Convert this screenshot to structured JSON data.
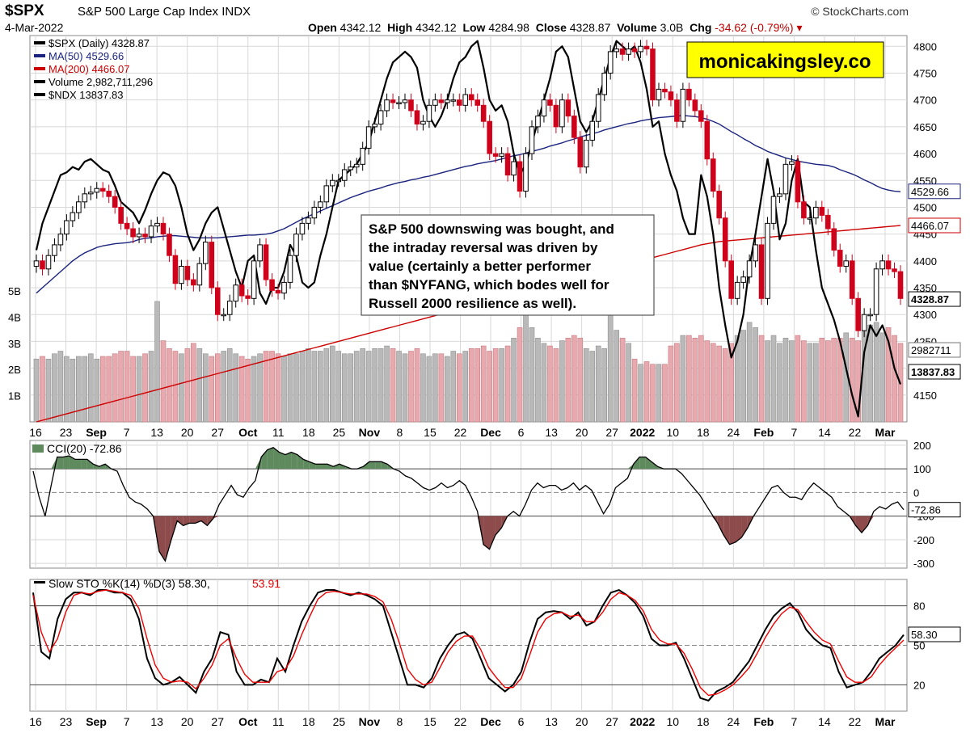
{
  "header": {
    "symbol": "$SPX",
    "description": "S&P 500 Large Cap Index",
    "exchange": "INDX",
    "date": "4-Mar-2022",
    "source": "© StockCharts.com",
    "quote": {
      "open_label": "Open",
      "open": "4342.12",
      "high_label": "High",
      "high": "4342.12",
      "low_label": "Low",
      "low": "4284.98",
      "close_label": "Close",
      "close": "4328.87",
      "volume_label": "Volume",
      "volume": "3.0B",
      "chg_label": "Chg",
      "chg": "-34.62 (-0.79%)"
    }
  },
  "watermark": "monicakingsley.co",
  "annotation": [
    "S&P 500 downswing was bought, and",
    "the intraday reversal was driven by",
    "value (certainly a better performer",
    "than $NYFANG, which bodes well for",
    "Russell 2000 resilience as well)."
  ],
  "legend_main": [
    {
      "text": "$SPX (Daily) 4328.87",
      "color": "#000000",
      "icon": "candle-icon"
    },
    {
      "text": "MA(50) 4529.66",
      "color": "#1a237e",
      "icon": "line-icon"
    },
    {
      "text": "MA(200) 4466.07",
      "color": "#cc0000",
      "icon": "line-icon"
    },
    {
      "text": "Volume 2,982,711,296",
      "color": "#000000",
      "icon": "bar-icon"
    },
    {
      "text": "$NDX 13837.83",
      "color": "#000000",
      "icon": "line-icon"
    }
  ],
  "legend_cci": "CCI(20) -72.86",
  "legend_sto": {
    "k": "Slow STO %K(14) %D(3) 58.30,",
    "d": "53.91"
  },
  "right_labels": {
    "ma50": "4529.66",
    "ma200": "4466.07",
    "close": "4328.87",
    "volume": "2982711",
    "ndx": "13837.83",
    "cci": "-72.86",
    "sto": "58.30"
  },
  "colors": {
    "up": "#000000",
    "down": "#d0021b",
    "ma50": "#1a237e",
    "ma200": "#cc0000",
    "vol_up": "#b9b9b9",
    "vol_down": "#e8a9ae",
    "cci_pos": "#5e8a5e",
    "cci_neg": "#8e4b4b",
    "sto_k": "#000000",
    "sto_d": "#ee0000",
    "grid": "#d8d8d8"
  },
  "chart_data": [
    {
      "type": "candlestick",
      "title": "$SPX (Daily) 4328.87",
      "x_tick_labels": [
        "16",
        "23",
        "Sep",
        "7",
        "13",
        "20",
        "27",
        "Oct",
        "11",
        "18",
        "25",
        "Nov",
        "8",
        "15",
        "22",
        "Dec",
        "6",
        "13",
        "20",
        "27",
        "2022",
        "10",
        "18",
        "24",
        "Feb",
        "7",
        "14",
        "22",
        "Mar"
      ],
      "y_ticks": [
        4150,
        4200,
        4250,
        4300,
        4350,
        4400,
        4450,
        4500,
        4550,
        4600,
        4650,
        4700,
        4750,
        4800
      ],
      "ylim": [
        4100,
        4820
      ],
      "volume_ticks": [
        "1B",
        "2B",
        "3B",
        "4B",
        "5B"
      ],
      "close": [
        4400,
        4385,
        4410,
        4430,
        4450,
        4475,
        4490,
        4510,
        4525,
        4528,
        4535,
        4530,
        4520,
        4500,
        4470,
        4460,
        4445,
        4450,
        4445,
        4465,
        4470,
        4450,
        4410,
        4358,
        4390,
        4365,
        4355,
        4395,
        4435,
        4350,
        4300,
        4300,
        4325,
        4355,
        4335,
        4330,
        4400,
        4430,
        4365,
        4345,
        4340,
        4360,
        4410,
        4450,
        4470,
        4480,
        4500,
        4510,
        4540,
        4550,
        4550,
        4570,
        4575,
        4580,
        4610,
        4650,
        4655,
        4680,
        4700,
        4695,
        4695,
        4700,
        4680,
        4655,
        4660,
        4690,
        4700,
        4695,
        4700,
        4700,
        4690,
        4710,
        4700,
        4690,
        4660,
        4600,
        4595,
        4600,
        4560,
        4585,
        4530,
        4600,
        4650,
        4670,
        4700,
        4690,
        4650,
        4700,
        4670,
        4630,
        4575,
        4625,
        4660,
        4710,
        4750,
        4790,
        4795,
        4785,
        4795,
        4790,
        4800,
        4795,
        4700,
        4720,
        4715,
        4700,
        4660,
        4720,
        4700,
        4680,
        4660,
        4590,
        4530,
        4480,
        4400,
        4330,
        4360,
        4370,
        4400,
        4430,
        4330,
        4470,
        4520,
        4525,
        4580,
        4585,
        4510,
        4480,
        4480,
        4500,
        4485,
        4460,
        4420,
        4390,
        4400,
        4330,
        4270,
        4300,
        4300,
        4385,
        4400,
        4385,
        4380,
        4330
      ],
      "ma50": [
        4340,
        4350,
        4360,
        4370,
        4380,
        4390,
        4400,
        4408,
        4415,
        4420,
        4425,
        4428,
        4430,
        4432,
        4433,
        4434,
        4436,
        4440,
        4442,
        4443,
        4445,
        4446,
        4447,
        4447,
        4446,
        4445,
        4444,
        4443,
        4443,
        4443,
        4443,
        4444,
        4445,
        4446,
        4447,
        4448,
        4448,
        4449,
        4450,
        4452,
        4456,
        4460,
        4466,
        4472,
        4478,
        4483,
        4488,
        4493,
        4498,
        4503,
        4508,
        4513,
        4518,
        4522,
        4526,
        4530,
        4533,
        4536,
        4540,
        4543,
        4546,
        4548,
        4551,
        4553,
        4556,
        4558,
        4561,
        4564,
        4567,
        4570,
        4573,
        4576,
        4578,
        4581,
        4583,
        4585,
        4587,
        4590,
        4593,
        4596,
        4598,
        4601,
        4604,
        4607,
        4610,
        4614,
        4617,
        4620,
        4624,
        4627,
        4631,
        4634,
        4637,
        4640,
        4644,
        4647,
        4650,
        4653,
        4656,
        4658,
        4661,
        4663,
        4665,
        4667,
        4668,
        4669,
        4670,
        4671,
        4670,
        4669,
        4667,
        4664,
        4660,
        4655,
        4648,
        4641,
        4635,
        4628,
        4622,
        4615,
        4610,
        4604,
        4600,
        4596,
        4592,
        4589,
        4586,
        4584,
        4582,
        4580,
        4579,
        4578,
        4575,
        4570,
        4566,
        4562,
        4557,
        4551,
        4546,
        4540,
        4535,
        4532,
        4530,
        4529
      ],
      "ma200": [
        4100,
        4103,
        4106,
        4109,
        4112,
        4115,
        4118,
        4121,
        4124,
        4127,
        4130,
        4133,
        4136,
        4139,
        4142,
        4145,
        4148,
        4151,
        4154,
        4157,
        4160,
        4163,
        4166,
        4169,
        4172,
        4175,
        4178,
        4181,
        4184,
        4187,
        4190,
        4193,
        4196,
        4199,
        4202,
        4205,
        4208,
        4211,
        4214,
        4217,
        4220,
        4223,
        4226,
        4229,
        4232,
        4235,
        4238,
        4241,
        4244,
        4247,
        4250,
        4253,
        4256,
        4259,
        4262,
        4265,
        4268,
        4271,
        4274,
        4277,
        4280,
        4283,
        4286,
        4289,
        4292,
        4295,
        4298,
        4301,
        4304,
        4307,
        4310,
        4313,
        4316,
        4319,
        4322,
        4325,
        4328,
        4331,
        4334,
        4337,
        4340,
        4343,
        4346,
        4349,
        4352,
        4355,
        4358,
        4361,
        4364,
        4367,
        4370,
        4373,
        4376,
        4379,
        4382,
        4385,
        4388,
        4391,
        4394,
        4397,
        4400,
        4403,
        4406,
        4409,
        4412,
        4415,
        4418,
        4421,
        4424,
        4427,
        4430,
        4432,
        4434,
        4436,
        4437,
        4438,
        4439,
        4440,
        4441,
        4442,
        4443,
        4444,
        4445,
        4446,
        4447,
        4448,
        4449,
        4450,
        4451,
        4452,
        4453,
        4454,
        4455,
        4456,
        4457,
        4458,
        4459,
        4460,
        4461,
        4462,
        4463,
        4464,
        4465,
        4466
      ],
      "ndx_price_scale": [
        4420,
        4470,
        4500,
        4530,
        4560,
        4565,
        4575,
        4570,
        4585,
        4590,
        4580,
        4570,
        4565,
        4540,
        4510,
        4500,
        4490,
        4470,
        4495,
        4525,
        4550,
        4565,
        4560,
        4540,
        4500,
        4450,
        4420,
        4440,
        4470,
        4490,
        4500,
        4460,
        4420,
        4380,
        4350,
        4400,
        4410,
        4340,
        4320,
        4350,
        4350,
        4380,
        4430,
        4410,
        4360,
        4350,
        4360,
        4410,
        4450,
        4500,
        4550,
        4560,
        4570,
        4580,
        4600,
        4620,
        4660,
        4700,
        4740,
        4770,
        4780,
        4790,
        4780,
        4760,
        4700,
        4670,
        4650,
        4670,
        4700,
        4740,
        4770,
        4780,
        4800,
        4810,
        4760,
        4700,
        4680,
        4690,
        4660,
        4600,
        4560,
        4580,
        4620,
        4660,
        4700,
        4740,
        4790,
        4800,
        4780,
        4720,
        4660,
        4640,
        4660,
        4700,
        4740,
        4780,
        4810,
        4800,
        4790,
        4800,
        4770,
        4720,
        4650,
        4660,
        4600,
        4560,
        4530,
        4480,
        4450,
        4450,
        4560,
        4520,
        4450,
        4350,
        4280,
        4220,
        4250,
        4300,
        4390,
        4450,
        4520,
        4590,
        4530,
        4440,
        4470,
        4550,
        4590,
        4510,
        4500,
        4420,
        4350,
        4320,
        4290,
        4250,
        4200,
        4150,
        4110,
        4230,
        4280,
        4260,
        4280,
        4250,
        4200,
        4170
      ],
      "volume_billions": [
        2.4,
        2.5,
        2.4,
        2.6,
        2.7,
        2.5,
        2.4,
        2.5,
        2.5,
        2.6,
        2.4,
        2.5,
        2.5,
        2.6,
        2.7,
        2.7,
        2.5,
        2.5,
        2.6,
        2.7,
        4.6,
        3.1,
        2.8,
        2.7,
        2.6,
        2.8,
        3.0,
        2.8,
        2.6,
        2.5,
        2.6,
        2.7,
        2.8,
        2.6,
        2.5,
        2.4,
        2.5,
        2.6,
        2.7,
        2.7,
        2.6,
        2.5,
        2.6,
        2.6,
        2.7,
        2.8,
        2.7,
        2.7,
        2.8,
        2.9,
        2.7,
        2.6,
        2.6,
        2.7,
        2.8,
        2.7,
        2.8,
        2.8,
        2.9,
        2.8,
        2.7,
        2.6,
        2.7,
        2.8,
        2.6,
        2.5,
        2.6,
        2.6,
        2.5,
        2.7,
        2.6,
        2.7,
        2.8,
        2.8,
        2.9,
        2.7,
        2.8,
        2.8,
        2.9,
        3.2,
        3.6,
        4.3,
        3.6,
        3.2,
        3.0,
        2.9,
        2.8,
        3.1,
        3.2,
        3.3,
        3.2,
        2.8,
        2.7,
        2.9,
        2.8,
        4.9,
        3.5,
        3.2,
        3.0,
        2.4,
        2.2,
        2.3,
        2.2,
        2.2,
        2.2,
        2.9,
        3.0,
        3.3,
        3.3,
        3.2,
        3.3,
        3.1,
        3.0,
        2.9,
        2.8,
        3.0,
        3.3,
        3.5,
        3.8,
        3.6,
        3.3,
        3.1,
        3.3,
        3.0,
        3.2,
        3.1,
        3.3,
        3.1,
        3.0,
        3.0,
        3.2,
        3.1,
        3.2,
        3.2,
        3.4,
        3.2,
        3.1,
        3.5,
        3.7,
        3.8,
        3.4,
        3.6,
        3.3,
        3.0
      ]
    },
    {
      "type": "line",
      "title": "CCI(20) -72.86",
      "y_ticks": [
        -300,
        -200,
        -100,
        0,
        100,
        200
      ],
      "ylim": [
        -320,
        220
      ],
      "values": [
        90,
        -20,
        -100,
        30,
        150,
        150,
        155,
        140,
        140,
        140,
        120,
        110,
        120,
        100,
        90,
        30,
        -20,
        -40,
        -50,
        -70,
        -100,
        -250,
        -290,
        -200,
        -120,
        -140,
        -130,
        -130,
        -120,
        -140,
        -110,
        -50,
        -10,
        30,
        -10,
        -20,
        20,
        50,
        150,
        180,
        190,
        170,
        160,
        170,
        160,
        140,
        130,
        120,
        120,
        120,
        110,
        120,
        110,
        100,
        100,
        110,
        130,
        130,
        130,
        120,
        100,
        90,
        70,
        60,
        40,
        20,
        10,
        20,
        40,
        20,
        30,
        50,
        30,
        -20,
        -80,
        -220,
        -240,
        -180,
        -150,
        -100,
        -80,
        -100,
        -50,
        10,
        40,
        20,
        30,
        30,
        10,
        20,
        40,
        10,
        30,
        10,
        -40,
        -90,
        -50,
        20,
        40,
        60,
        120,
        150,
        150,
        130,
        110,
        100,
        100,
        100,
        80,
        50,
        20,
        -10,
        -50,
        -90,
        -130,
        -180,
        -220,
        -210,
        -190,
        -150,
        -100,
        -60,
        -20,
        20,
        30,
        0,
        -20,
        -20,
        -30,
        10,
        40,
        20,
        0,
        -20,
        -60,
        -80,
        -100,
        -140,
        -170,
        -140,
        -80,
        -60,
        -70,
        -50,
        -40,
        -73
      ]
    },
    {
      "type": "line",
      "title": "Slow STO %K(14) %D(3) 58.30, 53.91",
      "y_ticks": [
        20,
        50,
        80
      ],
      "ylim": [
        0,
        100
      ],
      "series": [
        {
          "name": "%K",
          "values": [
            90,
            45,
            40,
            70,
            85,
            90,
            90,
            88,
            92,
            92,
            90,
            90,
            85,
            70,
            40,
            25,
            20,
            22,
            26,
            20,
            14,
            30,
            40,
            60,
            58,
            30,
            20,
            20,
            24,
            22,
            40,
            30,
            50,
            68,
            80,
            90,
            92,
            92,
            90,
            88,
            90,
            88,
            85,
            80,
            60,
            40,
            20,
            20,
            18,
            25,
            40,
            50,
            58,
            60,
            55,
            40,
            25,
            20,
            15,
            20,
            30,
            52,
            70,
            75,
            76,
            75,
            70,
            75,
            65,
            68,
            80,
            90,
            92,
            88,
            82,
            72,
            55,
            50,
            50,
            52,
            40,
            25,
            10,
            8,
            15,
            18,
            22,
            30,
            38,
            50,
            62,
            72,
            78,
            82,
            75,
            62,
            55,
            50,
            48,
            30,
            18,
            20,
            22,
            30,
            40,
            45,
            50,
            58
          ]
        },
        {
          "name": "%D",
          "values": [
            88,
            60,
            45,
            55,
            75,
            88,
            90,
            89,
            91,
            92,
            91,
            90,
            88,
            78,
            55,
            35,
            25,
            22,
            23,
            22,
            17,
            25,
            35,
            50,
            55,
            40,
            28,
            22,
            22,
            22,
            30,
            32,
            42,
            58,
            72,
            85,
            90,
            91,
            90,
            89,
            89,
            89,
            87,
            83,
            70,
            52,
            32,
            24,
            20,
            22,
            33,
            45,
            53,
            57,
            57,
            47,
            33,
            25,
            18,
            18,
            25,
            42,
            60,
            70,
            74,
            75,
            72,
            73,
            68,
            68,
            75,
            85,
            90,
            88,
            84,
            76,
            62,
            54,
            51,
            51,
            44,
            32,
            18,
            12,
            13,
            16,
            20,
            26,
            33,
            44,
            56,
            66,
            74,
            79,
            77,
            68,
            60,
            54,
            51,
            38,
            26,
            22,
            22,
            26,
            35,
            42,
            48,
            54
          ]
        }
      ]
    }
  ]
}
